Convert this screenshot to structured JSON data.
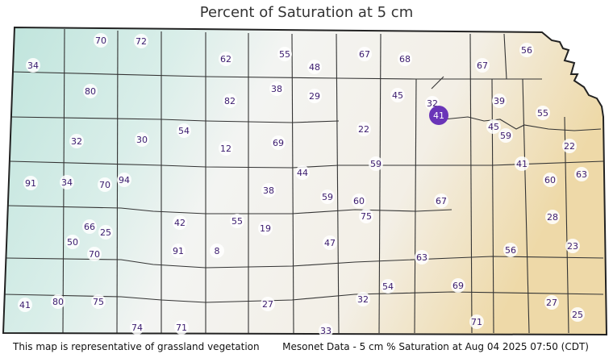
{
  "title": "Percent of Saturation at 5 cm",
  "footer_left": "This map is representative of grassland vegetation",
  "footer_right": "Mesonet Data - 5 cm % Saturation at Aug 04 2025 07:50 (CDT)",
  "colors": {
    "wet": "#bfe4dc",
    "mid": "#f4f4f2",
    "dry": "#efdcae",
    "label_text": "#3a1a6e",
    "highlight": "#6a35b8"
  },
  "stations": [
    {
      "value": "34"
    },
    {
      "value": "70"
    },
    {
      "value": "72"
    },
    {
      "value": "62"
    },
    {
      "value": "55"
    },
    {
      "value": "48"
    },
    {
      "value": "67"
    },
    {
      "value": "68"
    },
    {
      "value": "67"
    },
    {
      "value": "56"
    },
    {
      "value": "80"
    },
    {
      "value": "82"
    },
    {
      "value": "38"
    },
    {
      "value": "29"
    },
    {
      "value": "45"
    },
    {
      "value": "32"
    },
    {
      "value": "41",
      "highlighted": true
    },
    {
      "value": "39"
    },
    {
      "value": "55"
    },
    {
      "value": "32"
    },
    {
      "value": "30"
    },
    {
      "value": "54"
    },
    {
      "value": "12"
    },
    {
      "value": "69"
    },
    {
      "value": "22"
    },
    {
      "value": "45"
    },
    {
      "value": "59"
    },
    {
      "value": "22"
    },
    {
      "value": "91"
    },
    {
      "value": "34"
    },
    {
      "value": "70"
    },
    {
      "value": "94"
    },
    {
      "value": "44"
    },
    {
      "value": "59"
    },
    {
      "value": "41"
    },
    {
      "value": "60"
    },
    {
      "value": "63"
    },
    {
      "value": "38"
    },
    {
      "value": "59"
    },
    {
      "value": "60"
    },
    {
      "value": "75"
    },
    {
      "value": "67"
    },
    {
      "value": "42"
    },
    {
      "value": "55"
    },
    {
      "value": "19"
    },
    {
      "value": "66"
    },
    {
      "value": "25"
    },
    {
      "value": "50"
    },
    {
      "value": "70"
    },
    {
      "value": "91"
    },
    {
      "value": "8"
    },
    {
      "value": "47"
    },
    {
      "value": "63"
    },
    {
      "value": "28"
    },
    {
      "value": "23"
    },
    {
      "value": "56"
    },
    {
      "value": "54"
    },
    {
      "value": "69"
    },
    {
      "value": "32"
    },
    {
      "value": "27"
    },
    {
      "value": "41"
    },
    {
      "value": "80"
    },
    {
      "value": "75"
    },
    {
      "value": "74"
    },
    {
      "value": "71"
    },
    {
      "value": "33"
    },
    {
      "value": "71"
    },
    {
      "value": "27"
    },
    {
      "value": "25"
    }
  ]
}
